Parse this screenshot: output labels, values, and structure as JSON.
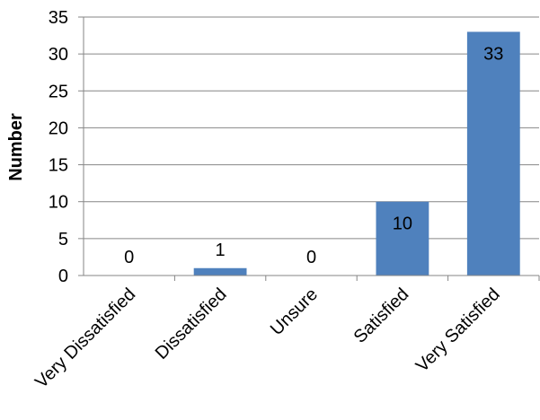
{
  "chart_data": {
    "type": "bar",
    "title": "",
    "xlabel": "",
    "ylabel": "Number",
    "categories": [
      "Very Dissatisfied",
      "Dissatisfied",
      "Unsure",
      "Satisfied",
      "Very Satisfied"
    ],
    "values": [
      0,
      1,
      0,
      10,
      33
    ],
    "data_labels": [
      "0",
      "1",
      "0",
      "10",
      "33"
    ],
    "ylim": [
      0,
      35
    ],
    "yticks": [
      0,
      5,
      10,
      15,
      20,
      25,
      30,
      35
    ],
    "grid": true,
    "legend": "none",
    "bar_color": "#4f81bd",
    "grid_color": "#868686",
    "axis_color": "#868686"
  }
}
